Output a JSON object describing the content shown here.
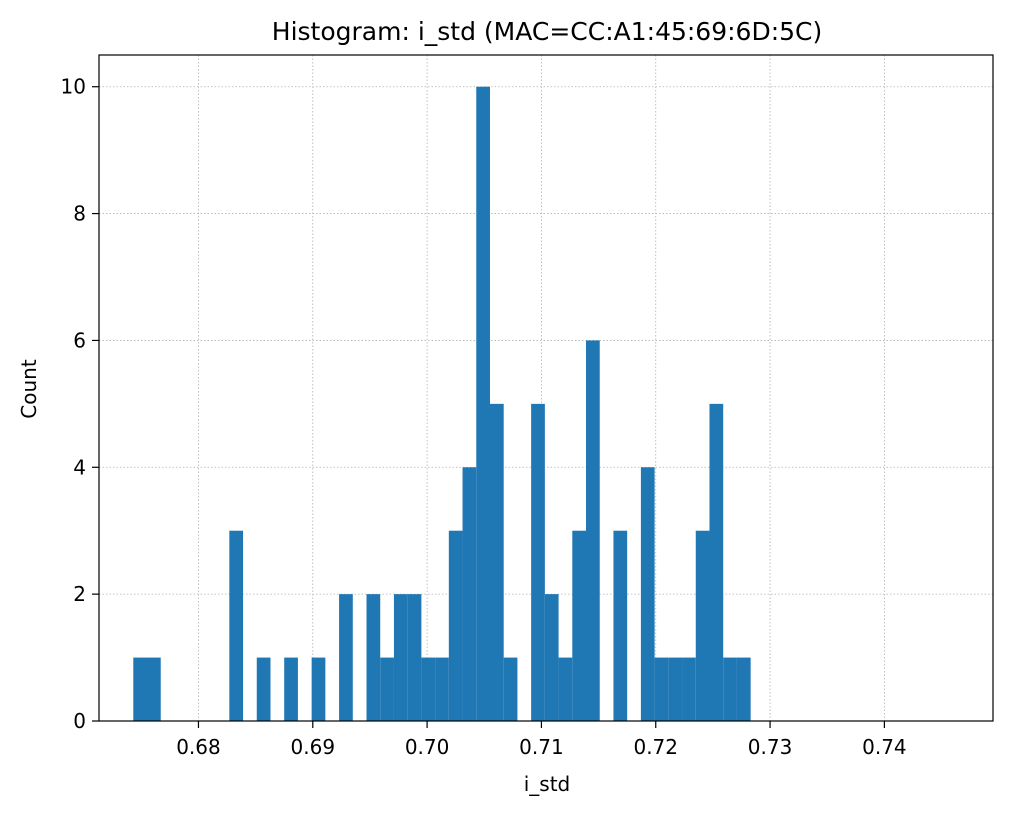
{
  "chart_data": {
    "type": "bar",
    "title": "Histogram: i_std (MAC=CC:A1:45:69:6D:5C)",
    "xlabel": "i_std",
    "ylabel": "Count",
    "xlim": [
      0.6713,
      0.7495
    ],
    "ylim": [
      0,
      10.5
    ],
    "xticks": [
      "0.68",
      "0.69",
      "0.70",
      "0.71",
      "0.72",
      "0.73",
      "0.74"
    ],
    "xtick_values": [
      0.68,
      0.69,
      0.7,
      0.71,
      0.72,
      0.73,
      0.74
    ],
    "yticks": [
      "0",
      "2",
      "4",
      "6",
      "8",
      "10"
    ],
    "ytick_values": [
      0,
      2,
      4,
      6,
      8,
      10
    ],
    "grid": true,
    "color": "#1f77b4",
    "bin_start": 0.6743,
    "bin_width": 0.0012,
    "counts": [
      1,
      1,
      0,
      0,
      0,
      0,
      0,
      3,
      0,
      1,
      0,
      1,
      0,
      1,
      0,
      2,
      0,
      2,
      1,
      2,
      2,
      1,
      1,
      3,
      4,
      10,
      5,
      1,
      0,
      5,
      2,
      1,
      3,
      6,
      0,
      3,
      0,
      4,
      1,
      1,
      1,
      3,
      5,
      1,
      1,
      0,
      0,
      0,
      0,
      0,
      0,
      0,
      0,
      0,
      0,
      0,
      0,
      0,
      0,
      0
    ]
  }
}
